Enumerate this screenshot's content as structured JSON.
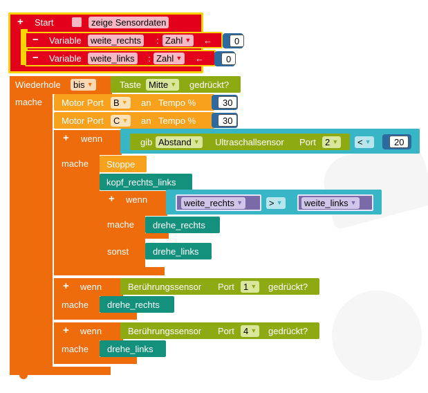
{
  "start": {
    "label": "Start",
    "checkbox_label": "zeige Sensordaten"
  },
  "var1": {
    "keyword": "Variable",
    "name": "weite_rechts",
    "colon": ":",
    "type": "Zahl",
    "assign": "←",
    "value": "0"
  },
  "var2": {
    "keyword": "Variable",
    "name": "weite_links",
    "colon": ":",
    "type": "Zahl",
    "assign": "←",
    "value": "0"
  },
  "loop": {
    "label": "Wiederhole",
    "mode": "bis",
    "do_label": "mache"
  },
  "cond_key": {
    "label": "Taste",
    "key": "Mitte",
    "suffix": "gedrückt?"
  },
  "motor_b": {
    "label": "Motor Port",
    "port": "B",
    "at": "an",
    "speed_label": "Tempo %",
    "value": "30"
  },
  "motor_c": {
    "label": "Motor Port",
    "port": "C",
    "at": "an",
    "speed_label": "Tempo %",
    "value": "30"
  },
  "if1": {
    "if_label": "wenn",
    "do_label": "mache",
    "get": "gib",
    "measure": "Abstand",
    "sensor": "Ultraschallsensor",
    "port_label": "Port",
    "port": "2",
    "op": "<",
    "value": "20"
  },
  "stop": {
    "label": "Stoppe"
  },
  "call_kopf": {
    "label": "kopf_rechts_links"
  },
  "if2": {
    "if_label": "wenn",
    "do_label": "mache",
    "else_label": "sonst",
    "left": "weite_rechts",
    "op": ">",
    "right": "weite_links",
    "do_call": "drehe_rechts",
    "else_call": "drehe_links"
  },
  "if3": {
    "if_label": "wenn",
    "do_label": "mache",
    "sensor": "Berührungssensor",
    "port_label": "Port",
    "port": "1",
    "suffix": "gedrückt?",
    "do_call": "drehe_rechts"
  },
  "if4": {
    "if_label": "wenn",
    "do_label": "mache",
    "sensor": "Berührungssensor",
    "port_label": "Port",
    "port": "4",
    "suffix": "gedrückt?",
    "do_call": "drehe_links"
  },
  "colors": {
    "start_red": "#e2001a",
    "highlight": "#fcd200",
    "control_orange": "#ef6c0d",
    "motor_orange": "#f7a11c",
    "sensor_green": "#8eaa13",
    "teal": "#14917c",
    "logic_cyan": "#38b6c6",
    "variable_purple": "#7b6aa8",
    "number_blue": "#2c6aa0"
  }
}
